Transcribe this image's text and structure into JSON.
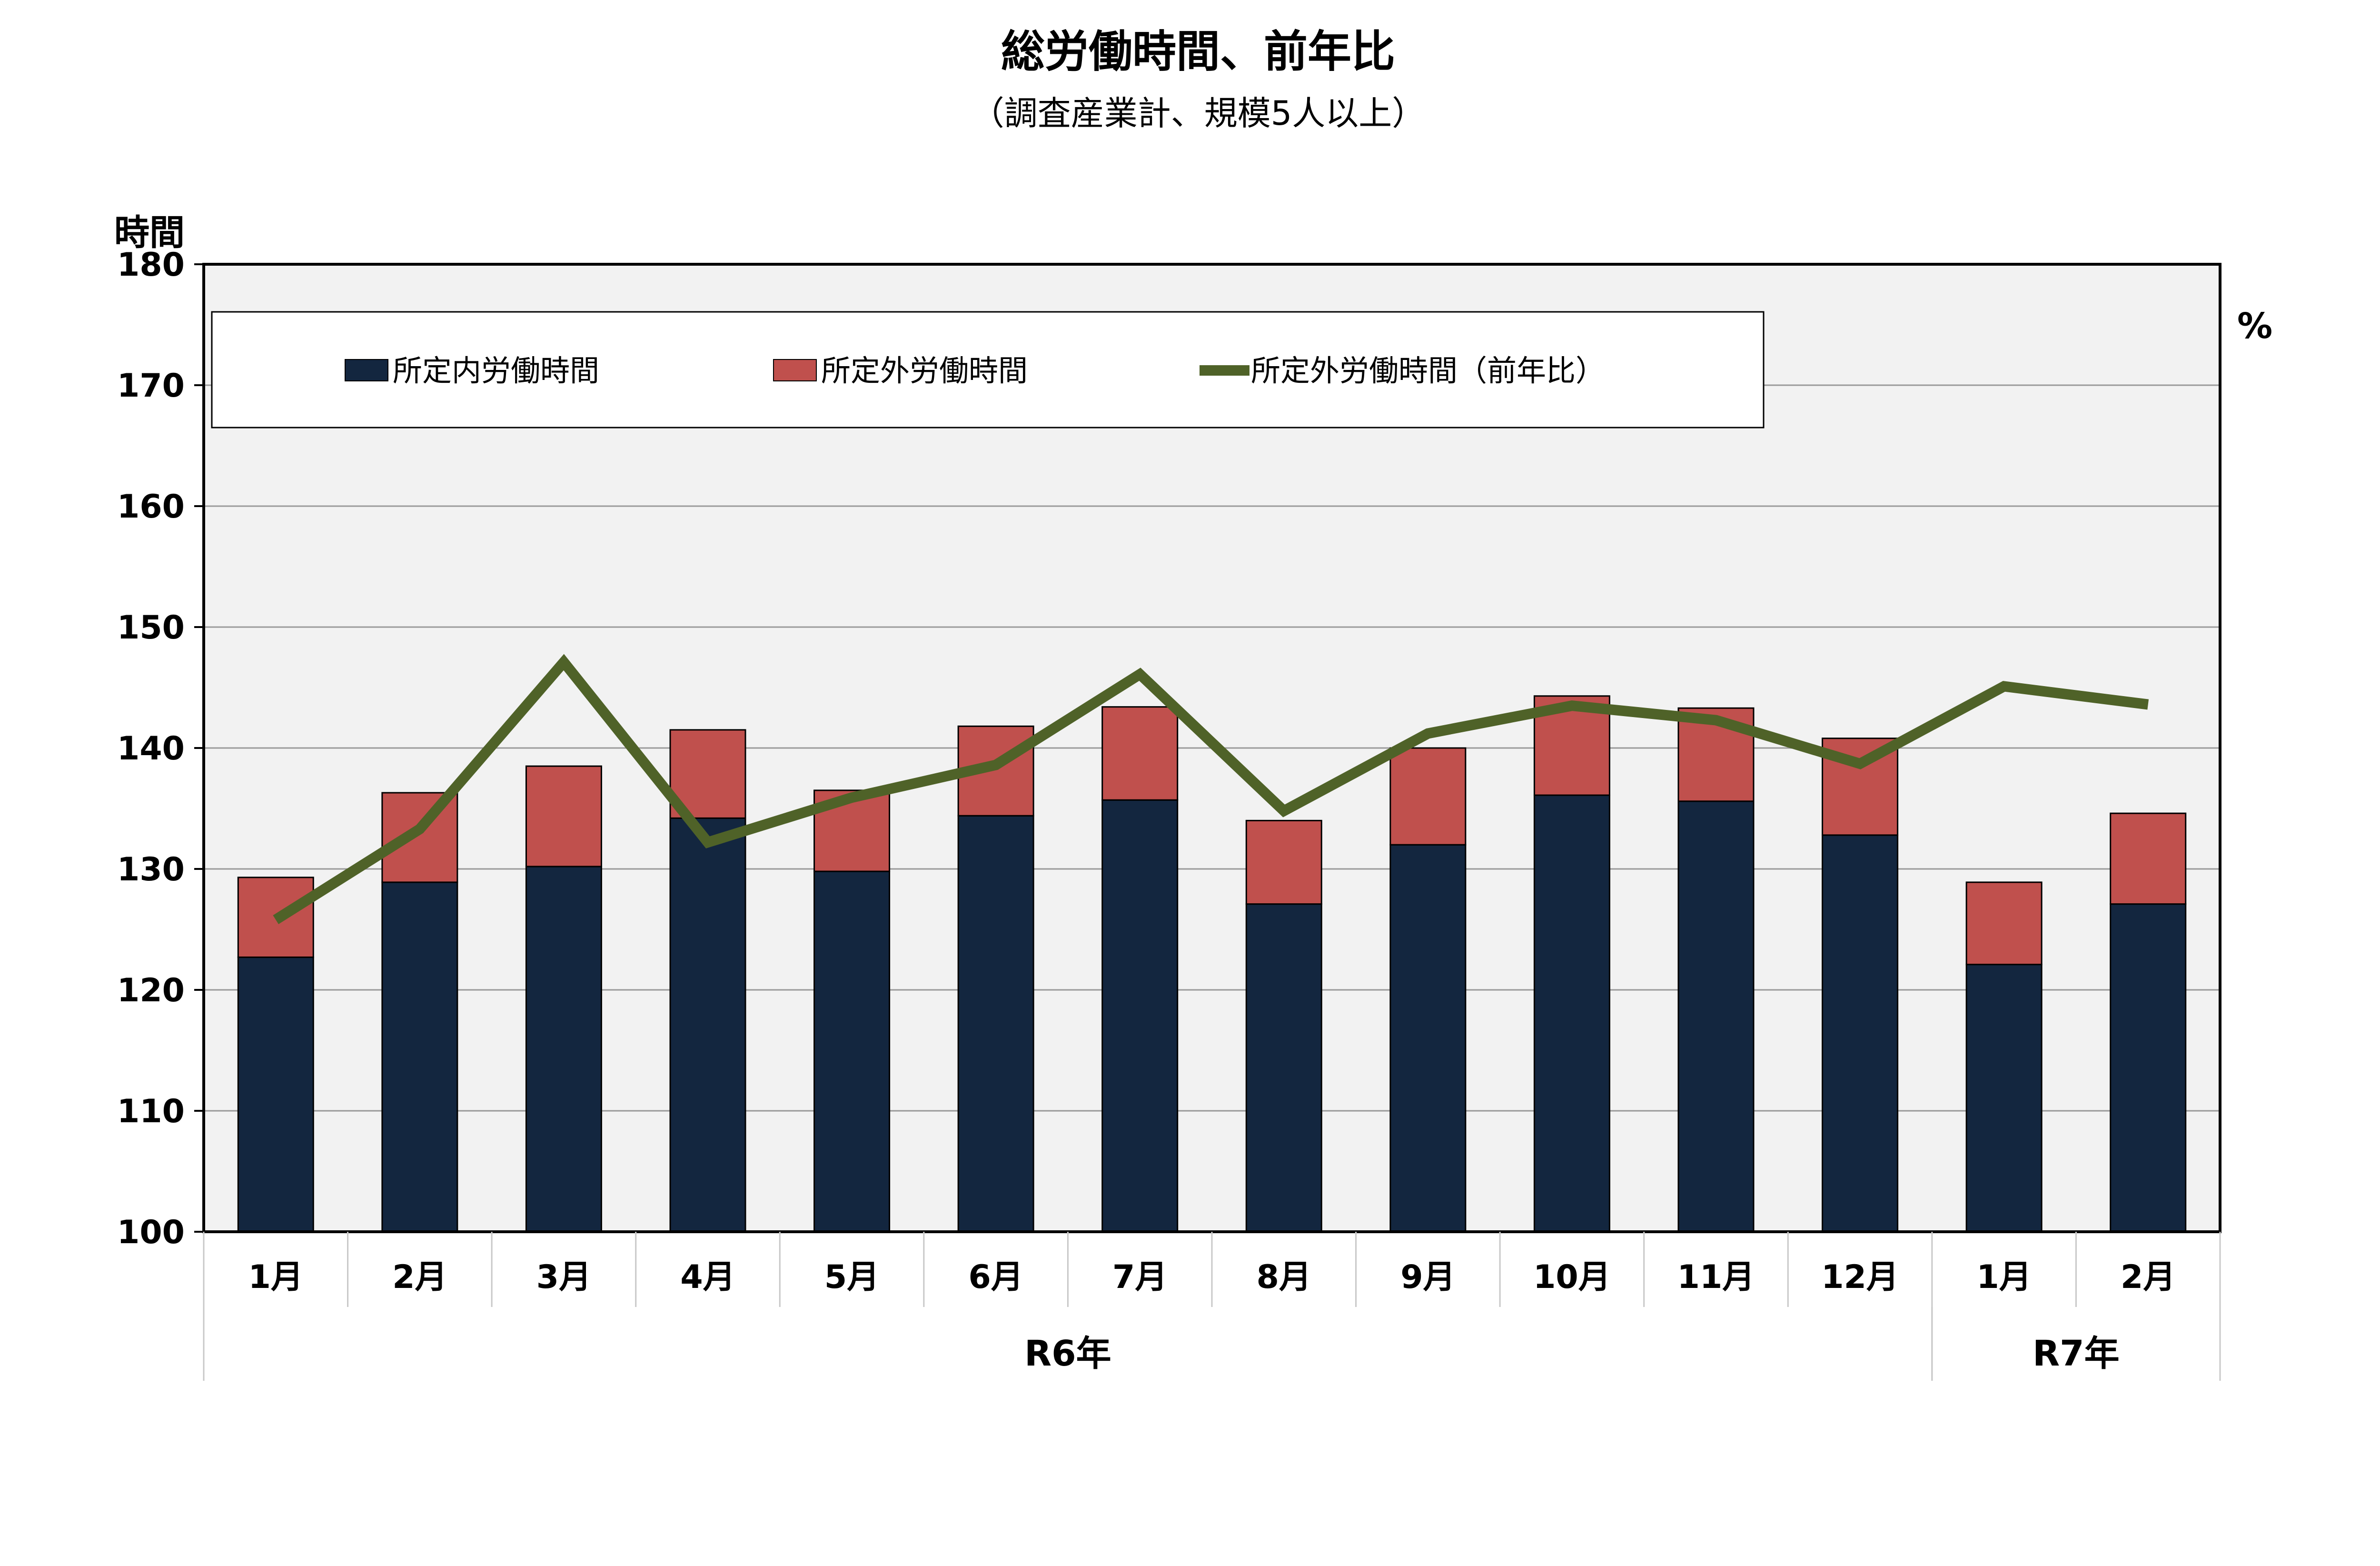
{
  "chart_data": {
    "type": "bar",
    "title": "総労働時間、前年比",
    "subtitle": "（調査産業計、規模5人以上）",
    "y_unit_left": "時間",
    "y_unit_right": "%",
    "ylim": [
      100,
      180
    ],
    "yticks": [
      100,
      110,
      120,
      130,
      140,
      150,
      160,
      170,
      180
    ],
    "grid": true,
    "legend_position": "top-left",
    "categories": [
      "1月",
      "2月",
      "3月",
      "4月",
      "5月",
      "6月",
      "7月",
      "8月",
      "9月",
      "10月",
      "11月",
      "12月",
      "1月",
      "2月"
    ],
    "year_groups": [
      {
        "label": "R6年",
        "count": 12
      },
      {
        "label": "R7年",
        "count": 2
      }
    ],
    "series": [
      {
        "name": "所定内労働時間",
        "type": "bar",
        "color": "#13263f",
        "values": [
          122.7,
          128.9,
          130.2,
          134.2,
          129.8,
          134.4,
          135.7,
          127.1,
          132.0,
          136.1,
          135.6,
          132.8,
          122.1,
          127.1
        ]
      },
      {
        "name": "所定外労働時間",
        "type": "bar",
        "color": "#c0504d",
        "values": [
          6.6,
          7.4,
          8.3,
          7.3,
          6.7,
          7.4,
          7.7,
          6.9,
          8.0,
          8.2,
          7.7,
          8.0,
          6.8,
          7.5
        ]
      },
      {
        "name": "所定外労働時間（前年比）",
        "type": "line",
        "color": "#4f6228",
        "values": [
          125.8,
          133.3,
          147.1,
          132.2,
          135.9,
          138.6,
          146.1,
          134.8,
          141.2,
          143.5,
          142.3,
          138.7,
          145.1,
          143.6
        ]
      }
    ]
  }
}
